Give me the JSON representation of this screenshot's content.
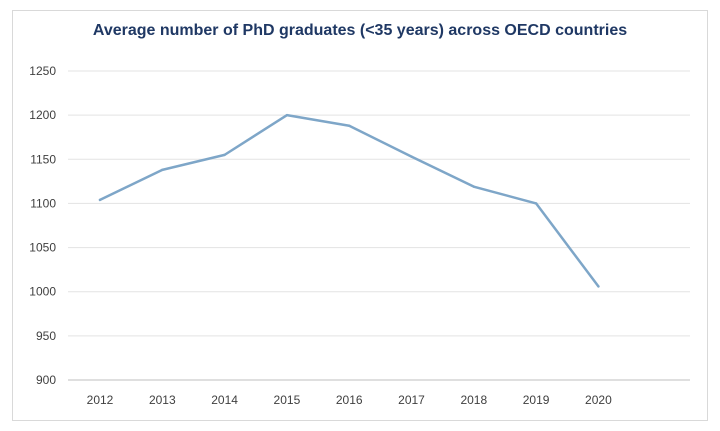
{
  "chart_data": {
    "type": "line",
    "title": "Average number of PhD graduates (<35 years) across OECD countries",
    "xlabel": "",
    "ylabel": "",
    "categories": [
      "2012",
      "2013",
      "2014",
      "2015",
      "2016",
      "2017",
      "2018",
      "2019",
      "2020"
    ],
    "series": [
      {
        "values": [
          1104,
          1138,
          1155,
          1200,
          1188,
          1153,
          1119,
          1100,
          1006
        ]
      }
    ],
    "ylim": [
      900,
      1250
    ],
    "yticks": [
      "900",
      "950",
      "1000",
      "1050",
      "1100",
      "1150",
      "1200",
      "1250"
    ],
    "grid": true,
    "legend": "none",
    "line_color": "#7ea6c8",
    "grid_color": "#e3e3e3"
  }
}
